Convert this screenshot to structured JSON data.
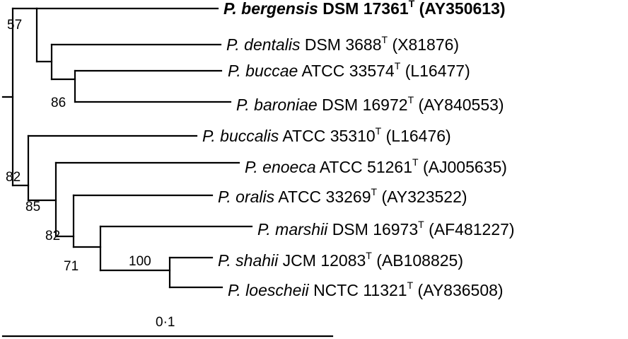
{
  "tree": {
    "taxa": [
      {
        "id": "bergensis",
        "genus": "P.",
        "species": "bergensis",
        "strain": "DSM 17361",
        "type_mark": "T",
        "accession": "(AY350613)",
        "bold": true
      },
      {
        "id": "dentalis",
        "genus": "P.",
        "species": "dentalis",
        "strain": "DSM 3688",
        "type_mark": "T",
        "accession": "(X81876)",
        "bold": false
      },
      {
        "id": "buccae",
        "genus": "P.",
        "species": "buccae",
        "strain": "ATCC 33574",
        "type_mark": "T",
        "accession": "(L16477)",
        "bold": false
      },
      {
        "id": "baroniae",
        "genus": "P.",
        "species": "baroniae",
        "strain": "DSM 16972",
        "type_mark": "T",
        "accession": "(AY840553)",
        "bold": false
      },
      {
        "id": "buccalis",
        "genus": "P.",
        "species": "buccalis",
        "strain": "ATCC 35310",
        "type_mark": "T",
        "accession": "(L16476)",
        "bold": false
      },
      {
        "id": "enoeca",
        "genus": "P.",
        "species": "enoeca",
        "strain": "ATCC 51261",
        "type_mark": "T",
        "accession": "(AJ005635)",
        "bold": false
      },
      {
        "id": "oralis",
        "genus": "P.",
        "species": "oralis",
        "strain": "ATCC 33269",
        "type_mark": "T",
        "accession": "(AY323522)",
        "bold": false
      },
      {
        "id": "marshii",
        "genus": "P.",
        "species": "marshii",
        "strain": "DSM 16973",
        "type_mark": "T",
        "accession": "(AF481227)",
        "bold": false
      },
      {
        "id": "shahii",
        "genus": "P.",
        "species": "shahii",
        "strain": "JCM 12083",
        "type_mark": "T",
        "accession": "(AB108825)",
        "bold": false
      },
      {
        "id": "loescheii",
        "genus": "P.",
        "species": "loescheii",
        "strain": "NCTC 11321",
        "type_mark": "T",
        "accession": "(AY836508)",
        "bold": false
      }
    ],
    "bootstrap": {
      "n57": "57",
      "n86": "86",
      "n82a": "82",
      "n85": "85",
      "n82b": "82",
      "n71": "71",
      "n100": "100"
    },
    "scale_label": "0·1"
  }
}
